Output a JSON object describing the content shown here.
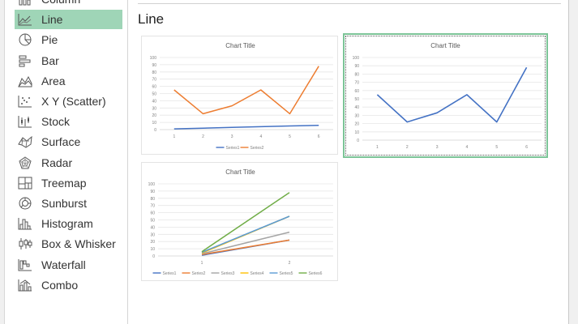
{
  "sidebar": {
    "items": [
      {
        "label": "Column",
        "icon": "column-chart-icon"
      },
      {
        "label": "Line",
        "icon": "line-chart-icon",
        "selected": true
      },
      {
        "label": "Pie",
        "icon": "pie-chart-icon"
      },
      {
        "label": "Bar",
        "icon": "bar-chart-icon"
      },
      {
        "label": "Area",
        "icon": "area-chart-icon"
      },
      {
        "label": "X Y (Scatter)",
        "icon": "scatter-chart-icon"
      },
      {
        "label": "Stock",
        "icon": "stock-chart-icon"
      },
      {
        "label": "Surface",
        "icon": "surface-chart-icon"
      },
      {
        "label": "Radar",
        "icon": "radar-chart-icon"
      },
      {
        "label": "Treemap",
        "icon": "treemap-chart-icon"
      },
      {
        "label": "Sunburst",
        "icon": "sunburst-chart-icon"
      },
      {
        "label": "Histogram",
        "icon": "histogram-chart-icon"
      },
      {
        "label": "Box & Whisker",
        "icon": "box-whisker-chart-icon"
      },
      {
        "label": "Waterfall",
        "icon": "waterfall-chart-icon"
      },
      {
        "label": "Combo",
        "icon": "combo-chart-icon"
      }
    ]
  },
  "main": {
    "heading": "Line"
  },
  "chart_data": [
    {
      "type": "line",
      "title": "Chart Title",
      "x": [
        "1",
        "2",
        "3",
        "4",
        "5",
        "6"
      ],
      "ylim": [
        0,
        100
      ],
      "yticks": [
        0,
        10,
        20,
        30,
        40,
        50,
        60,
        70,
        80,
        90,
        100
      ],
      "grid": true,
      "legend": "bottom",
      "series": [
        {
          "name": "Series1",
          "color": "#4472c4",
          "values": [
            1,
            2,
            3,
            4,
            5,
            6
          ]
        },
        {
          "name": "Series2",
          "color": "#ed7d31",
          "values": [
            55,
            22,
            33,
            55,
            22,
            88
          ]
        }
      ]
    },
    {
      "type": "line",
      "title": "Chart Title",
      "x": [
        "1",
        "2",
        "3",
        "4",
        "5",
        "6"
      ],
      "ylim": [
        0,
        100
      ],
      "yticks": [
        0,
        10,
        20,
        30,
        40,
        50,
        60,
        70,
        80,
        90,
        100
      ],
      "grid": true,
      "selected": true,
      "series": [
        {
          "color": "#4472c4",
          "values": [
            55,
            22,
            33,
            55,
            22,
            88
          ]
        }
      ]
    },
    {
      "type": "line",
      "title": "Chart Title",
      "x": [
        "1",
        "2"
      ],
      "ylim": [
        0,
        100
      ],
      "yticks": [
        0,
        10,
        20,
        30,
        40,
        50,
        60,
        70,
        80,
        90,
        100
      ],
      "grid": true,
      "legend": "bottom",
      "series": [
        {
          "name": "Series1",
          "color": "#4472c4",
          "values": [
            1,
            22
          ]
        },
        {
          "name": "Series2",
          "color": "#ed7d31",
          "values": [
            2,
            22
          ]
        },
        {
          "name": "Series3",
          "color": "#a5a5a5",
          "values": [
            3,
            33
          ]
        },
        {
          "name": "Series4",
          "color": "#ffc000",
          "values": [
            4,
            55
          ]
        },
        {
          "name": "Series5",
          "color": "#5b9bd5",
          "values": [
            5,
            55
          ]
        },
        {
          "name": "Series6",
          "color": "#70ad47",
          "values": [
            6,
            88
          ]
        }
      ]
    }
  ]
}
